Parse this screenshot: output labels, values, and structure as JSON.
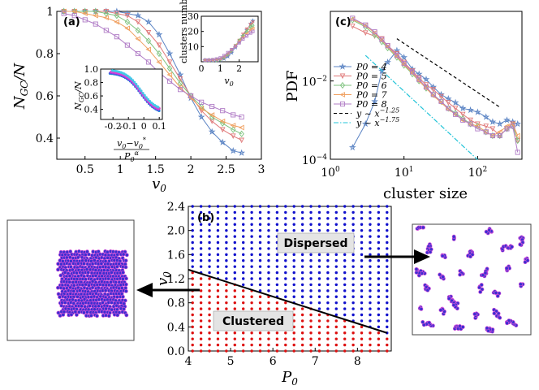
{
  "chart_data": [
    {
      "id": "a",
      "panel_label": "(a)",
      "type": "line",
      "xlabel": "v0",
      "ylabel": "N_GC/N",
      "xlim": [
        0.1,
        3.0
      ],
      "ylim": [
        0.3,
        1.0
      ],
      "x_ticks": [
        "0.5",
        "1",
        "1.5",
        "2",
        "2.5",
        "3"
      ],
      "y_ticks": [
        "0.4",
        "0.6",
        "0.8",
        "1"
      ],
      "x": [
        0.2,
        0.35,
        0.5,
        0.65,
        0.8,
        0.95,
        1.1,
        1.25,
        1.4,
        1.55,
        1.7,
        1.85,
        2.0,
        2.15,
        2.3,
        2.45,
        2.6,
        2.72
      ],
      "series": [
        {
          "name": "P0 = 4",
          "color": "#5b84c4",
          "marker": "star",
          "values": [
            1.0,
            1.0,
            1.0,
            1.0,
            1.0,
            1.0,
            0.99,
            0.98,
            0.95,
            0.89,
            0.8,
            0.7,
            0.59,
            0.5,
            0.43,
            0.38,
            0.34,
            0.33
          ]
        },
        {
          "name": "P0 = 5",
          "color": "#e07a7a",
          "marker": "triangle-down",
          "values": [
            1.0,
            1.0,
            1.0,
            1.0,
            1.0,
            0.99,
            0.98,
            0.95,
            0.9,
            0.84,
            0.76,
            0.68,
            0.6,
            0.53,
            0.48,
            0.44,
            0.41,
            0.39
          ]
        },
        {
          "name": "P0 = 6",
          "color": "#7ec27e",
          "marker": "diamond",
          "values": [
            1.0,
            1.0,
            1.0,
            1.0,
            0.99,
            0.98,
            0.95,
            0.91,
            0.86,
            0.8,
            0.73,
            0.66,
            0.6,
            0.55,
            0.5,
            0.47,
            0.44,
            0.42
          ]
        },
        {
          "name": "P0 = 7",
          "color": "#f0a060",
          "marker": "triangle-left",
          "values": [
            1.0,
            1.0,
            0.99,
            0.98,
            0.97,
            0.95,
            0.92,
            0.87,
            0.82,
            0.76,
            0.7,
            0.64,
            0.59,
            0.54,
            0.51,
            0.48,
            0.46,
            0.45
          ]
        },
        {
          "name": "P0 = 8",
          "color": "#b07cc6",
          "marker": "square",
          "values": [
            0.99,
            0.98,
            0.96,
            0.94,
            0.91,
            0.88,
            0.84,
            0.8,
            0.76,
            0.71,
            0.67,
            0.63,
            0.6,
            0.57,
            0.55,
            0.53,
            0.51,
            0.5
          ]
        }
      ],
      "insets": [
        {
          "id": "a-inset-1",
          "type": "line",
          "ylabel": "clusters number",
          "xlabel": "v0",
          "xlim": [
            0,
            3
          ],
          "ylim": [
            0,
            30
          ],
          "x_ticks": [
            "0",
            "1",
            "2"
          ],
          "y_ticks": [
            "10",
            "20",
            "30"
          ],
          "x": [
            0.2,
            0.4,
            0.6,
            0.8,
            1.0,
            1.2,
            1.4,
            1.6,
            1.8,
            2.0,
            2.2,
            2.4,
            2.6,
            2.72
          ],
          "series": [
            {
              "name": "P0 = 4",
              "values": [
                1,
                1,
                1,
                1,
                1.2,
                2,
                3.5,
                6,
                9.5,
                13,
                17,
                21,
                25,
                27
              ]
            },
            {
              "name": "P0 = 5",
              "values": [
                1,
                1,
                1,
                1,
                1.3,
                2.5,
                4.5,
                7,
                10.5,
                14,
                18,
                21.5,
                24.5,
                26
              ]
            },
            {
              "name": "P0 = 6",
              "values": [
                1,
                1,
                1,
                1.2,
                1.6,
                3,
                5,
                7.5,
                10.5,
                14,
                17,
                20,
                23,
                24
              ]
            },
            {
              "name": "P0 = 7",
              "values": [
                1,
                1,
                1.1,
                1.4,
                2,
                3.5,
                5.5,
                8,
                10.5,
                13.5,
                16,
                18.5,
                21,
                22
              ]
            },
            {
              "name": "P0 = 8",
              "values": [
                1,
                1.1,
                1.3,
                1.8,
                2.5,
                4,
                6,
                8,
                10,
                12.5,
                15,
                17,
                19,
                20
              ]
            }
          ]
        },
        {
          "id": "a-inset-2",
          "type": "scatter",
          "ylabel": "N_GC/N",
          "xlabel": "(v0 - v0*)/P0^0",
          "xlim": [
            -0.28,
            0.12
          ],
          "ylim": [
            0.25,
            1.0
          ],
          "x_ticks": [
            "-0.2",
            "-0.1",
            "0",
            "0.1"
          ],
          "y_ticks": [
            "0.4",
            "0.6",
            "0.8",
            "1.0"
          ]
        }
      ]
    },
    {
      "id": "c",
      "panel_label": "(c)",
      "type": "line",
      "xlabel": "cluster size",
      "ylabel": "PDF",
      "xscale": "log",
      "yscale": "log",
      "xlim": [
        1,
        400
      ],
      "ylim": [
        0.0001,
        0.6
      ],
      "x_ticks": [
        "10^0",
        "10^1",
        "10^2"
      ],
      "y_ticks": [
        "10^-4",
        "10^-2"
      ],
      "x": [
        2,
        3,
        4,
        5,
        6,
        8,
        10,
        13,
        16,
        20,
        25,
        32,
        40,
        50,
        63,
        80,
        100,
        130,
        160,
        200,
        250,
        300,
        350
      ],
      "series": [
        {
          "name": "P0 = 4",
          "color": "#5b84c4",
          "marker": "star",
          "values": [
            0.0002,
            0.0008,
            0.003,
            0.018,
            0.03,
            0.06,
            0.04,
            0.02,
            0.015,
            0.011,
            0.007,
            0.0045,
            0.0035,
            0.0028,
            0.002,
            0.0018,
            0.0016,
            0.0012,
            0.0009,
            0.0008,
            0.001,
            0.0009,
            0.0008
          ]
        },
        {
          "name": "P0 = 5",
          "color": "#e07a7a",
          "marker": "triangle-down",
          "values": [
            0.25,
            0.17,
            0.14,
            0.12,
            0.08,
            0.05,
            0.03,
            0.018,
            0.012,
            0.008,
            0.006,
            0.004,
            0.0028,
            0.002,
            0.0014,
            0.001,
            0.0008,
            0.0007,
            0.0006,
            0.0004,
            0.0006,
            0.0008,
            0.0003
          ]
        },
        {
          "name": "P0 = 6",
          "color": "#7ec27e",
          "marker": "diamond",
          "values": [
            0.36,
            0.24,
            0.15,
            0.1,
            0.07,
            0.04,
            0.025,
            0.015,
            0.01,
            0.0065,
            0.0045,
            0.003,
            0.002,
            0.0015,
            0.0011,
            0.0008,
            0.0007,
            0.0005,
            0.0004,
            0.0004,
            0.0006,
            0.0007,
            0.0003
          ]
        },
        {
          "name": "P0 = 7",
          "color": "#f0a060",
          "marker": "triangle-left",
          "values": [
            0.38,
            0.26,
            0.17,
            0.11,
            0.075,
            0.042,
            0.026,
            0.016,
            0.01,
            0.0065,
            0.0042,
            0.0028,
            0.0019,
            0.0014,
            0.001,
            0.0008,
            0.0007,
            0.0005,
            0.0004,
            0.0005,
            0.0007,
            0.0008,
            0.0004
          ]
        },
        {
          "name": "P0 = 8",
          "color": "#b07cc6",
          "marker": "square",
          "values": [
            0.4,
            0.27,
            0.18,
            0.115,
            0.08,
            0.045,
            0.028,
            0.017,
            0.011,
            0.007,
            0.0045,
            0.003,
            0.002,
            0.0014,
            0.001,
            0.0008,
            0.0006,
            0.0005,
            0.0004,
            0.0004,
            0.0006,
            0.0007,
            0.00015
          ]
        }
      ],
      "reference_lines": [
        {
          "name": "y ~ x^-1.25",
          "exponent": -1.25,
          "color": "#000000",
          "style": "dashed",
          "x_range": [
            8,
            200
          ],
          "y_at_start": 0.12
        },
        {
          "name": "y ~ x^-1.75",
          "exponent": -1.75,
          "color": "#22c4d8",
          "style": "dashdot",
          "x_range": [
            3,
            100
          ],
          "y_at_start": 0.045
        }
      ]
    },
    {
      "id": "b",
      "panel_label": "(b)",
      "type": "scatter",
      "xlabel": "P0",
      "ylabel": "v0",
      "xlim": [
        4,
        8.8
      ],
      "ylim": [
        0,
        2.4
      ],
      "x_ticks": [
        "4",
        "5",
        "6",
        "7",
        "8"
      ],
      "y_ticks": [
        "0.0",
        "0.4",
        "0.8",
        "1.2",
        "1.6",
        "2.0",
        "2.4"
      ],
      "grid_x_step": 0.2,
      "grid_y_step": 0.1,
      "boundary": {
        "x": [
          4,
          8.7
        ],
        "y": [
          1.35,
          0.3
        ]
      },
      "regions": [
        {
          "name": "Dispersed",
          "color": "#1010cc"
        },
        {
          "name": "Clustered",
          "color": "#dd1010"
        }
      ]
    }
  ],
  "snapshots": [
    {
      "id": "clustered-snapshot",
      "state": "clustered"
    },
    {
      "id": "dispersed-snapshot",
      "state": "dispersed"
    }
  ]
}
